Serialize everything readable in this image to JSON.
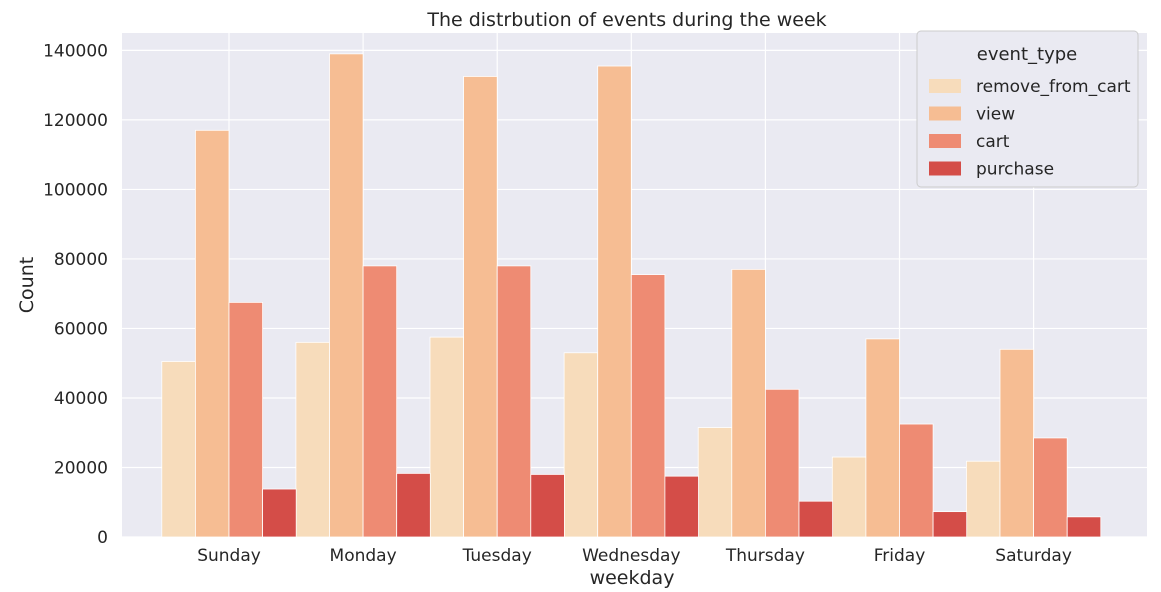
{
  "chart_data": {
    "type": "bar",
    "title": "The distrbution of events during the week",
    "xlabel": "weekday",
    "ylabel": "Count",
    "categories": [
      "Sunday",
      "Monday",
      "Tuesday",
      "Wednesday",
      "Thursday",
      "Friday",
      "Saturday"
    ],
    "ylim": [
      0,
      145000
    ],
    "yticks": [
      0,
      20000,
      40000,
      60000,
      80000,
      100000,
      120000,
      140000
    ],
    "grid": true,
    "legend": {
      "title": "event_type",
      "placement": "top-right"
    },
    "series": [
      {
        "name": "remove_from_cart",
        "color": "#f7dcbb",
        "values": [
          50500,
          56000,
          57500,
          53000,
          31500,
          23000,
          21800
        ]
      },
      {
        "name": "view",
        "color": "#f6bd93",
        "values": [
          117000,
          139000,
          132500,
          135500,
          77000,
          57000,
          54000
        ]
      },
      {
        "name": "cart",
        "color": "#ee8b73",
        "values": [
          67500,
          78000,
          78000,
          75500,
          42500,
          32500,
          28500
        ]
      },
      {
        "name": "purchase",
        "color": "#d44d48",
        "values": [
          13800,
          18300,
          18000,
          17500,
          10300,
          7300,
          5800
        ]
      }
    ]
  }
}
